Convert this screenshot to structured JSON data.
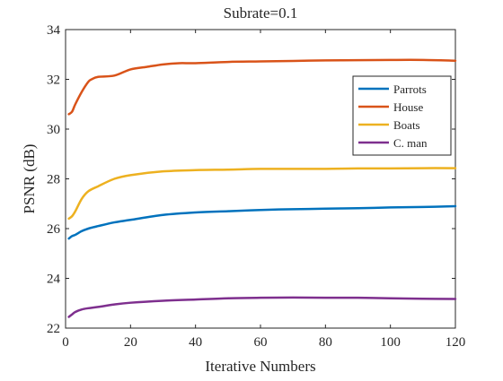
{
  "chart_data": {
    "type": "line",
    "title": "Subrate=0.1",
    "xlabel": "Iterative Numbers",
    "ylabel": "PSNR (dB)",
    "xlim": [
      0,
      120
    ],
    "ylim": [
      22,
      34
    ],
    "xticks": [
      0,
      20,
      40,
      60,
      80,
      100,
      120
    ],
    "yticks": [
      22,
      24,
      26,
      28,
      30,
      32,
      34
    ],
    "grid": false,
    "legend_position": "top-right",
    "series": [
      {
        "name": "Parrots",
        "color": "#0072BD",
        "x": [
          1,
          2,
          3,
          5,
          7,
          10,
          15,
          20,
          30,
          40,
          50,
          60,
          70,
          80,
          90,
          100,
          110,
          120
        ],
        "y": [
          25.6,
          25.7,
          25.75,
          25.9,
          26.0,
          26.1,
          26.25,
          26.35,
          26.55,
          26.65,
          26.7,
          26.75,
          26.78,
          26.8,
          26.82,
          26.85,
          26.87,
          26.9
        ]
      },
      {
        "name": "House",
        "color": "#D95319",
        "x": [
          1,
          2,
          3,
          5,
          7,
          8,
          10,
          15,
          20,
          25,
          30,
          35,
          40,
          50,
          60,
          70,
          80,
          90,
          100,
          110,
          120
        ],
        "y": [
          30.6,
          30.7,
          31.0,
          31.5,
          31.9,
          32.0,
          32.1,
          32.15,
          32.4,
          32.5,
          32.6,
          32.65,
          32.65,
          32.7,
          32.72,
          32.74,
          32.76,
          32.77,
          32.78,
          32.78,
          32.75
        ]
      },
      {
        "name": "Boats",
        "color": "#EDB120",
        "x": [
          1,
          2,
          3,
          5,
          7,
          10,
          15,
          20,
          30,
          40,
          50,
          60,
          70,
          80,
          90,
          100,
          110,
          120
        ],
        "y": [
          26.4,
          26.5,
          26.7,
          27.2,
          27.5,
          27.7,
          28.0,
          28.15,
          28.3,
          28.35,
          28.37,
          28.4,
          28.4,
          28.4,
          28.42,
          28.42,
          28.43,
          28.43
        ]
      },
      {
        "name": "C. man",
        "color": "#7E2F8E",
        "x": [
          1,
          2,
          3,
          5,
          7,
          10,
          15,
          20,
          30,
          40,
          50,
          60,
          70,
          80,
          90,
          100,
          110,
          120
        ],
        "y": [
          22.45,
          22.55,
          22.65,
          22.75,
          22.8,
          22.85,
          22.95,
          23.02,
          23.1,
          23.15,
          23.2,
          23.22,
          23.23,
          23.22,
          23.22,
          23.2,
          23.18,
          23.17
        ]
      }
    ]
  }
}
